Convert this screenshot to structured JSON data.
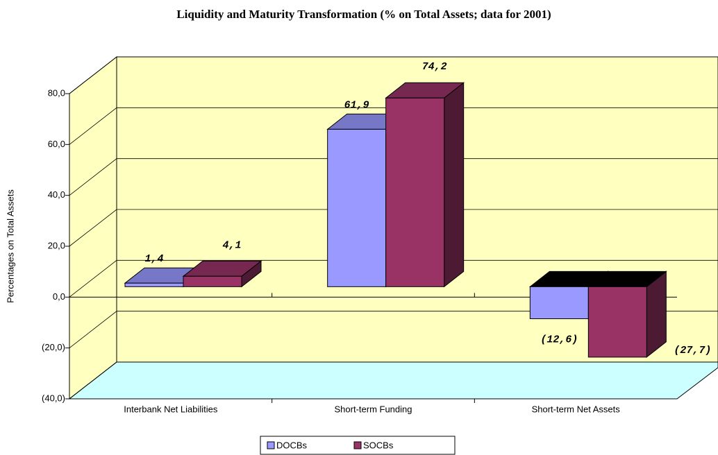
{
  "chart_data": {
    "type": "bar3d",
    "title": "Liquidity and Maturity Transformation (% on Total Assets; data for 2001)",
    "y_label": "Percentages on Total Assets",
    "categories": [
      "Interbank Net Liabilities",
      "Short-term Funding",
      "Short-term Net Assets"
    ],
    "series": [
      {
        "name": "DOCBs",
        "color": "#9999ff",
        "values": [
          1.4,
          61.9,
          -12.6
        ],
        "value_labels": [
          "1,4",
          "61,9",
          "(12,6)"
        ]
      },
      {
        "name": "SOCBs",
        "color": "#993366",
        "values": [
          4.1,
          74.2,
          -27.7
        ],
        "value_labels": [
          "4,1",
          "74,2",
          "(27,7)"
        ]
      }
    ],
    "ylim": [
      -40,
      80
    ],
    "yticks": [
      {
        "value": -40,
        "label": "(40,0)"
      },
      {
        "value": -20,
        "label": "(20,0)"
      },
      {
        "value": 0,
        "label": "0,0"
      },
      {
        "value": 20,
        "label": "20,0"
      },
      {
        "value": 40,
        "label": "40,0"
      },
      {
        "value": 60,
        "label": "60,0"
      },
      {
        "value": 80,
        "label": "80,0"
      }
    ],
    "grid": true,
    "legend": "bottom"
  }
}
